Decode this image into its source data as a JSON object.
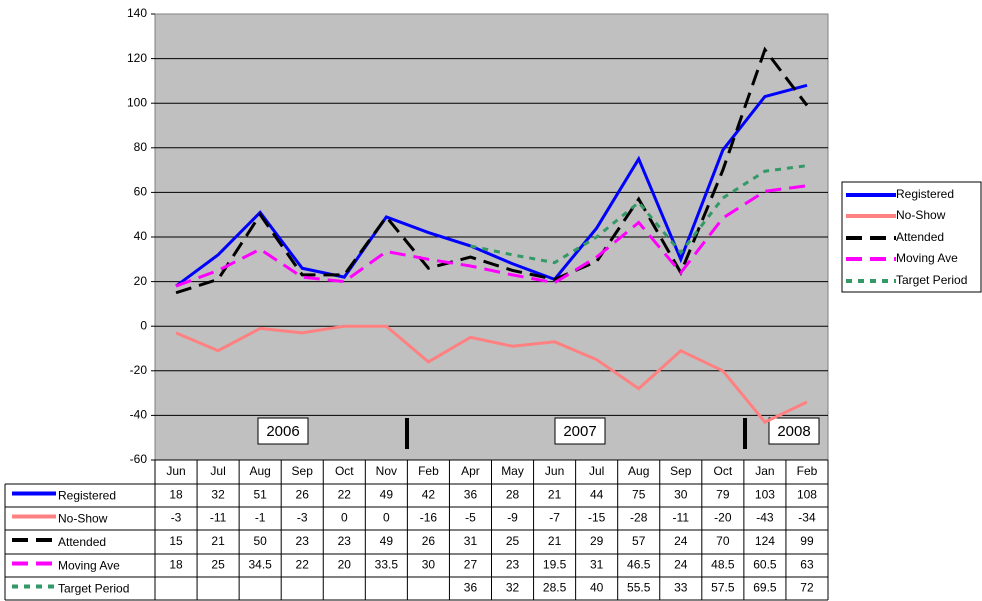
{
  "chart_data": {
    "type": "line",
    "categories": [
      "Jun",
      "Jul",
      "Aug",
      "Sep",
      "Oct",
      "Nov",
      "Feb",
      "Apr",
      "May",
      "Jun",
      "Jul",
      "Aug",
      "Sep",
      "Oct",
      "Jan",
      "Feb"
    ],
    "series": [
      {
        "name": "Registered",
        "color": "#0000ff",
        "dash": "solid",
        "values": [
          18,
          32,
          51,
          26,
          22,
          49,
          42,
          36,
          28,
          21,
          44,
          75,
          30,
          79,
          103,
          108
        ]
      },
      {
        "name": "No-Show",
        "color": "#ff8080",
        "dash": "solid",
        "values": [
          -3,
          -11,
          -1,
          -3,
          0,
          0,
          -16,
          -5,
          -9,
          -7,
          -15,
          -28,
          -11,
          -20,
          -43,
          -34
        ]
      },
      {
        "name": "Attended",
        "color": "#000000",
        "dash": "dashed",
        "values": [
          15,
          21,
          50,
          23,
          23,
          49,
          26,
          31,
          25,
          21,
          29,
          57,
          24,
          70,
          124,
          99
        ]
      },
      {
        "name": "Moving Ave",
        "color": "#ff00ff",
        "dash": "dashed",
        "values": [
          18,
          25,
          34.5,
          22,
          20,
          33.5,
          30,
          27,
          23,
          19.5,
          31,
          46.5,
          24,
          48.5,
          60.5,
          63
        ]
      },
      {
        "name": "Target Period",
        "color": "#339966",
        "dash": "dotted",
        "values": [
          null,
          null,
          null,
          null,
          null,
          null,
          null,
          36,
          32,
          28.5,
          40,
          55.5,
          33,
          57.5,
          69.5,
          72
        ]
      }
    ],
    "annotations": [
      "2006",
      "2007",
      "2008"
    ],
    "ylim": [
      -60,
      140
    ],
    "yticks": [
      -60,
      -40,
      -20,
      0,
      20,
      40,
      60,
      80,
      100,
      120,
      140
    ],
    "grid": true,
    "legend": "right",
    "data_table": true
  }
}
